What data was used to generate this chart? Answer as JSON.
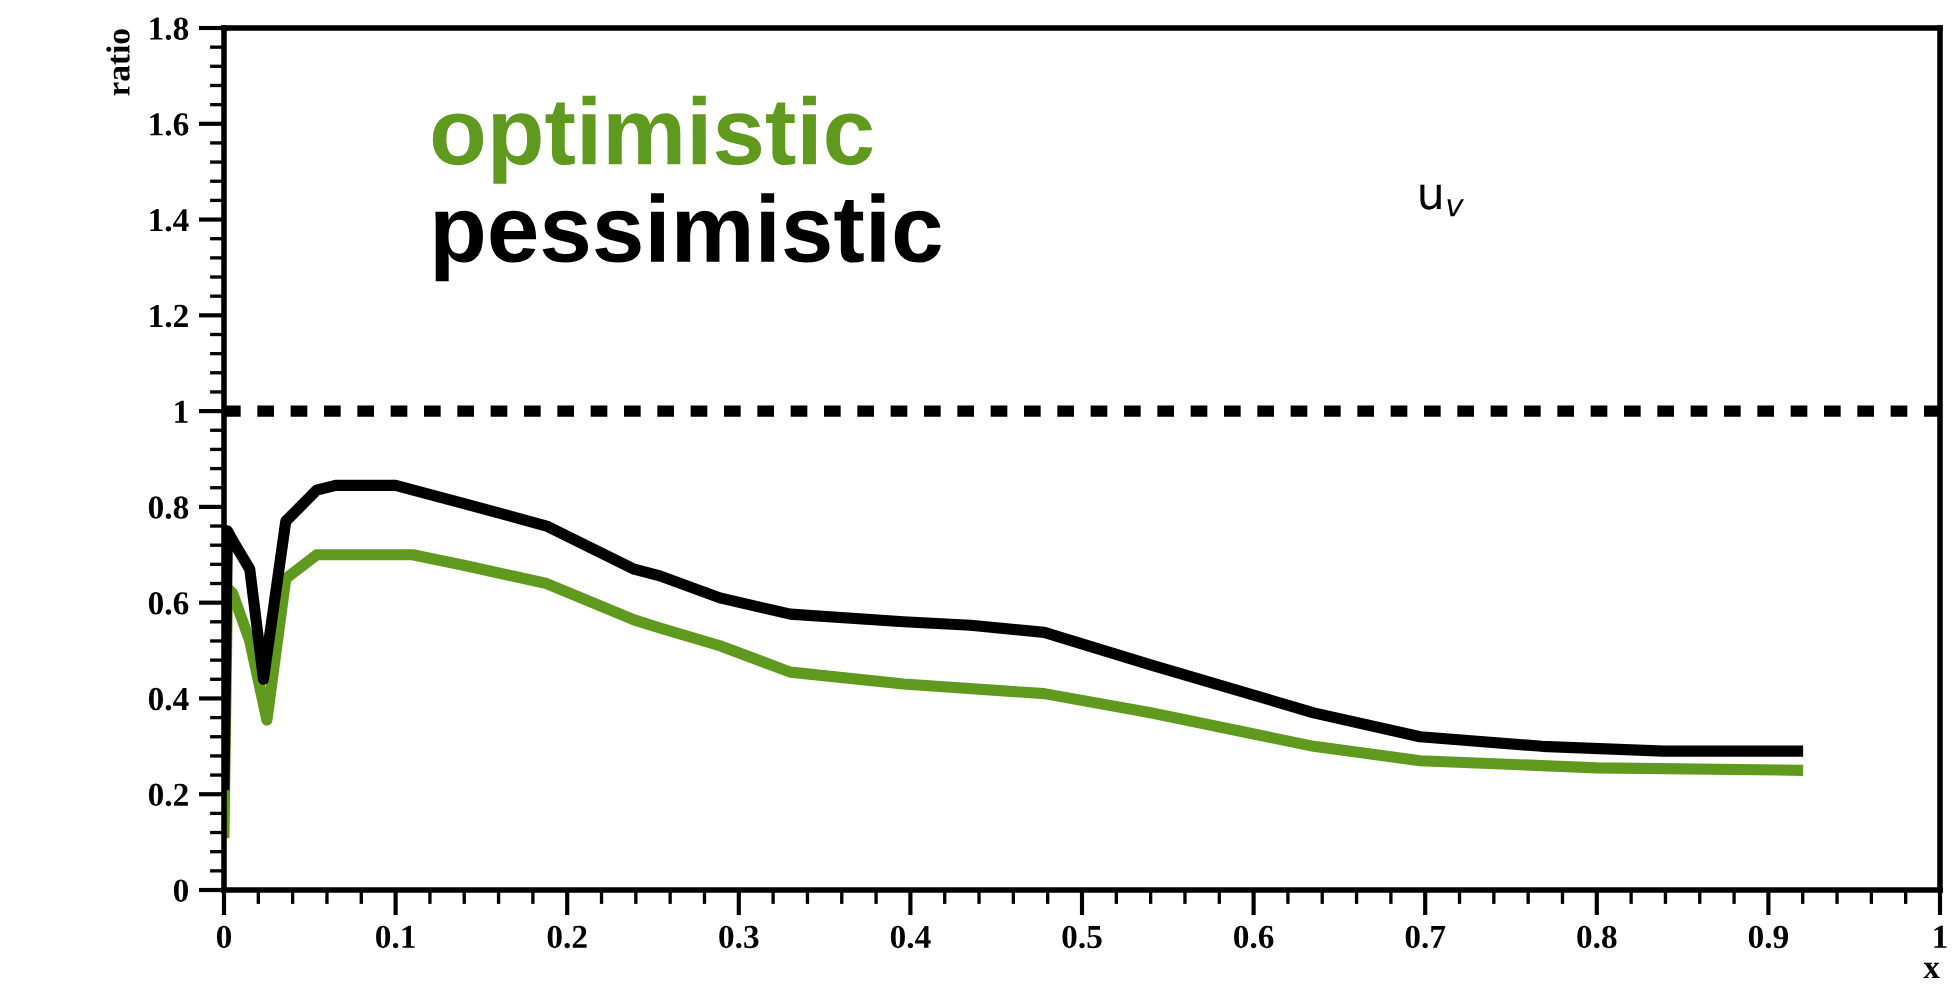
{
  "chart_data": {
    "type": "line",
    "xlabel": "x",
    "ylabel": "ratio",
    "xlim": [
      0,
      1
    ],
    "ylim": [
      0,
      1.8
    ],
    "xticks": [
      0,
      0.1,
      0.2,
      0.3,
      0.4,
      0.5,
      0.6,
      0.7,
      0.8,
      0.9,
      1
    ],
    "yticks": [
      0,
      0.2,
      0.4,
      0.6,
      0.8,
      1,
      1.2,
      1.4,
      1.6,
      1.8
    ],
    "grid": false,
    "legend": "top left",
    "line_style": "solid",
    "marker": "none",
    "annotations": [
      "u$_{v}$"
    ],
    "ref_lines": [
      {
        "axis": "y",
        "value": 1,
        "color": "#000000",
        "line_style": "dotted"
      }
    ],
    "series": [
      {
        "name": "optimistic",
        "color": "#5f9a1e",
        "x": [
          0,
          0.002,
          0.005,
          0.015,
          0.025,
          0.036,
          0.054,
          0.065,
          0.11,
          0.141,
          0.188,
          0.239,
          0.254,
          0.289,
          0.33,
          0.396,
          0.478,
          0.54,
          0.635,
          0.697,
          0.8,
          0.917
        ],
        "values": [
          0.12,
          0.63,
          0.62,
          0.52,
          0.355,
          0.65,
          0.7,
          0.7,
          0.7,
          0.677,
          0.64,
          0.564,
          0.547,
          0.51,
          0.455,
          0.43,
          0.41,
          0.37,
          0.3,
          0.27,
          0.255,
          0.25
        ]
      },
      {
        "name": "pessimistic",
        "color": "#000000",
        "x": [
          0,
          0.002,
          0.005,
          0.015,
          0.023,
          0.036,
          0.054,
          0.065,
          0.1,
          0.141,
          0.188,
          0.239,
          0.254,
          0.289,
          0.33,
          0.396,
          0.435,
          0.478,
          0.54,
          0.635,
          0.697,
          0.768,
          0.839,
          0.917
        ],
        "values": [
          0.22,
          0.75,
          0.73,
          0.67,
          0.44,
          0.77,
          0.835,
          0.845,
          0.845,
          0.806,
          0.76,
          0.67,
          0.656,
          0.61,
          0.576,
          0.56,
          0.553,
          0.538,
          0.47,
          0.37,
          0.32,
          0.3,
          0.29,
          0.29
        ]
      }
    ]
  }
}
